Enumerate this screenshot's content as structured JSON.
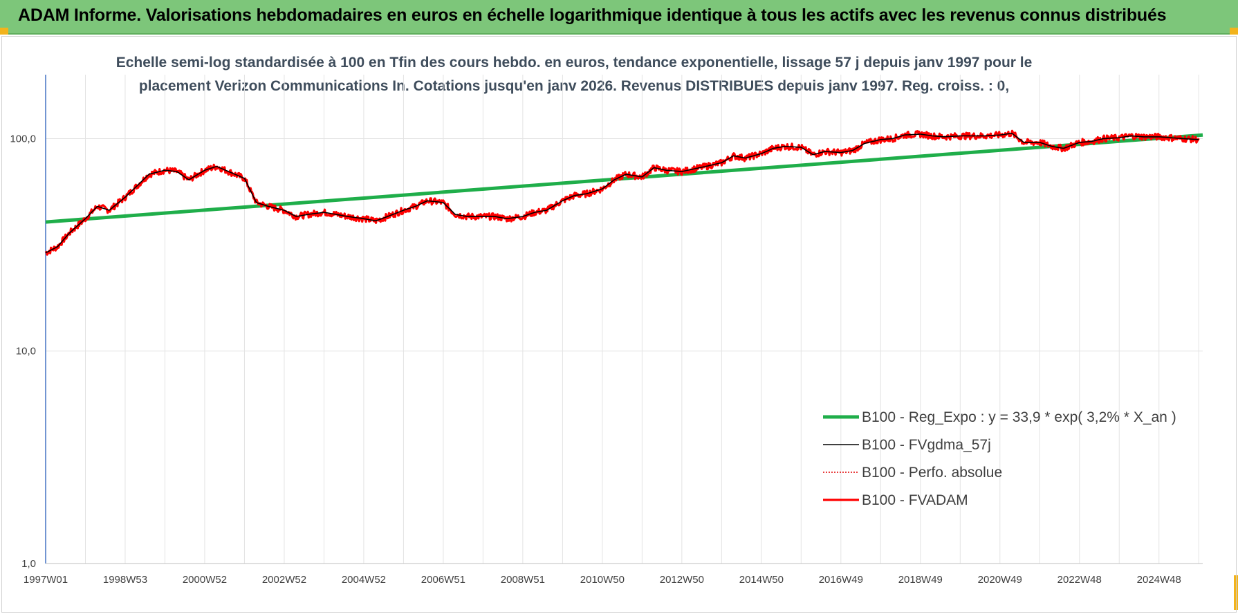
{
  "header": {
    "title": "ADAM Informe. Valorisations hebdomadaires en euros en échelle logarithmique identique à tous les actifs avec les revenus connus distribués"
  },
  "colors": {
    "header_bg": "#7dc67a",
    "corner": "#f2b31c",
    "trend": "#1fae4a",
    "smooth": "#000000",
    "perfo": "#e00000",
    "fvadam": "#ff0000",
    "grid": "#e3e3e3",
    "axis": "#4472c4"
  },
  "chart_data": {
    "type": "line",
    "title_line1": "Echelle semi-log standardisée à 100 en Tfin des cours hebdo. en euros, tendance exponentielle, lissage 57 j depuis janv 1997 pour le",
    "title_line2": "placement Verizon Communications In. Cotations jusqu'en janv 2026. Revenus DISTRIBUES depuis janv 1997. Reg. croiss. : 0,",
    "y_scale": "log",
    "ylim": [
      1,
      200
    ],
    "y_ticks": [
      {
        "value": 1,
        "label": "1,0"
      },
      {
        "value": 10,
        "label": "10,0"
      },
      {
        "value": 100,
        "label": "100,0"
      }
    ],
    "xlim": [
      1997.0,
      2026.1
    ],
    "x_ticks": [
      {
        "value": 1997.0,
        "label": "1997W01"
      },
      {
        "value": 1999.0,
        "label": "1998W53"
      },
      {
        "value": 2001.0,
        "label": "2000W52"
      },
      {
        "value": 2003.0,
        "label": "2002W52"
      },
      {
        "value": 2005.0,
        "label": "2004W52"
      },
      {
        "value": 2007.0,
        "label": "2006W51"
      },
      {
        "value": 2009.0,
        "label": "2008W51"
      },
      {
        "value": 2011.0,
        "label": "2010W50"
      },
      {
        "value": 2013.0,
        "label": "2012W50"
      },
      {
        "value": 2015.0,
        "label": "2014W50"
      },
      {
        "value": 2017.0,
        "label": "2016W49"
      },
      {
        "value": 2019.0,
        "label": "2018W49"
      },
      {
        "value": 2021.0,
        "label": "2020W49"
      },
      {
        "value": 2023.0,
        "label": "2022W48"
      },
      {
        "value": 2025.0,
        "label": "2024W48"
      }
    ],
    "legend_position": "bottom-right",
    "grid": true,
    "series": [
      {
        "name": "B100 - Reg_Expo : y = 33,9 * exp( 3,2% *  X_an )",
        "style": "trend",
        "x": [
          1997.0,
          2026.1
        ],
        "y": [
          40.5,
          104.0
        ]
      },
      {
        "name": "B100 - FVgdma_57j",
        "style": "smooth",
        "x": [
          1997.0,
          1997.3,
          1997.6,
          1998.0,
          1998.3,
          1998.6,
          1999.0,
          1999.3,
          1999.6,
          2000.0,
          2000.3,
          2000.6,
          2001.0,
          2001.3,
          2001.6,
          2002.0,
          2002.3,
          2002.6,
          2003.0,
          2003.3,
          2003.6,
          2004.0,
          2004.3,
          2004.6,
          2005.0,
          2005.3,
          2005.6,
          2006.0,
          2006.3,
          2006.6,
          2007.0,
          2007.3,
          2007.6,
          2008.0,
          2008.3,
          2008.6,
          2009.0,
          2009.3,
          2009.6,
          2010.0,
          2010.3,
          2010.6,
          2011.0,
          2011.3,
          2011.6,
          2012.0,
          2012.3,
          2012.6,
          2013.0,
          2013.3,
          2013.6,
          2014.0,
          2014.3,
          2014.6,
          2015.0,
          2015.3,
          2015.6,
          2016.0,
          2016.3,
          2016.6,
          2017.0,
          2017.3,
          2017.6,
          2018.0,
          2018.3,
          2018.6,
          2019.0,
          2019.3,
          2019.6,
          2020.0,
          2020.3,
          2020.6,
          2021.0,
          2021.3,
          2021.6,
          2022.0,
          2022.3,
          2022.6,
          2023.0,
          2023.3,
          2023.6,
          2024.0,
          2024.3,
          2024.6,
          2025.0,
          2025.3,
          2025.6,
          2026.0
        ],
        "y": [
          29,
          31,
          36,
          42,
          48,
          46,
          53,
          60,
          68,
          71,
          70,
          64,
          71,
          74,
          70,
          65,
          50,
          48,
          46,
          43,
          44,
          45,
          44,
          43,
          42,
          41,
          43,
          46,
          48,
          51,
          50,
          44,
          43,
          43,
          43,
          42,
          43,
          45,
          46,
          51,
          54,
          55,
          58,
          64,
          68,
          66,
          73,
          71,
          70,
          72,
          74,
          77,
          83,
          81,
          85,
          90,
          92,
          91,
          84,
          87,
          86,
          88,
          95,
          99,
          100,
          104,
          105,
          103,
          102,
          103,
          103,
          103,
          104,
          106,
          96,
          96,
          92,
          90,
          96,
          97,
          100,
          101,
          103,
          102,
          102,
          101,
          100,
          99
        ],
        "smooth": true
      },
      {
        "name": "B100 - Perfo. absolue",
        "style": "perfo",
        "x": [],
        "y": []
      },
      {
        "name": "B100 - FVADAM",
        "style": "fvadam",
        "x": [
          1997.0,
          1997.3,
          1997.6,
          1998.0,
          1998.3,
          1998.6,
          1999.0,
          1999.3,
          1999.6,
          2000.0,
          2000.3,
          2000.6,
          2001.0,
          2001.3,
          2001.6,
          2002.0,
          2002.3,
          2002.6,
          2003.0,
          2003.3,
          2003.6,
          2004.0,
          2004.3,
          2004.6,
          2005.0,
          2005.3,
          2005.6,
          2006.0,
          2006.3,
          2006.6,
          2007.0,
          2007.3,
          2007.6,
          2008.0,
          2008.3,
          2008.6,
          2009.0,
          2009.3,
          2009.6,
          2010.0,
          2010.3,
          2010.6,
          2011.0,
          2011.3,
          2011.6,
          2012.0,
          2012.3,
          2012.6,
          2013.0,
          2013.3,
          2013.6,
          2014.0,
          2014.3,
          2014.6,
          2015.0,
          2015.3,
          2015.6,
          2016.0,
          2016.3,
          2016.6,
          2017.0,
          2017.3,
          2017.6,
          2018.0,
          2018.3,
          2018.6,
          2019.0,
          2019.3,
          2019.6,
          2020.0,
          2020.3,
          2020.6,
          2021.0,
          2021.3,
          2021.6,
          2022.0,
          2022.3,
          2022.6,
          2023.0,
          2023.3,
          2023.6,
          2024.0,
          2024.3,
          2024.6,
          2025.0,
          2025.3,
          2025.6,
          2026.0
        ],
        "y": [
          29,
          31,
          36,
          42,
          48,
          46,
          53,
          60,
          68,
          71,
          70,
          64,
          71,
          74,
          70,
          65,
          50,
          48,
          46,
          43,
          44,
          45,
          44,
          43,
          42,
          41,
          43,
          46,
          48,
          51,
          50,
          44,
          43,
          43,
          43,
          42,
          43,
          45,
          46,
          51,
          54,
          55,
          58,
          64,
          68,
          66,
          73,
          71,
          70,
          72,
          74,
          77,
          83,
          81,
          85,
          90,
          92,
          91,
          84,
          87,
          86,
          88,
          95,
          99,
          100,
          104,
          105,
          103,
          102,
          103,
          103,
          103,
          104,
          106,
          96,
          96,
          92,
          90,
          96,
          97,
          100,
          101,
          103,
          102,
          102,
          101,
          100,
          99
        ]
      }
    ]
  }
}
